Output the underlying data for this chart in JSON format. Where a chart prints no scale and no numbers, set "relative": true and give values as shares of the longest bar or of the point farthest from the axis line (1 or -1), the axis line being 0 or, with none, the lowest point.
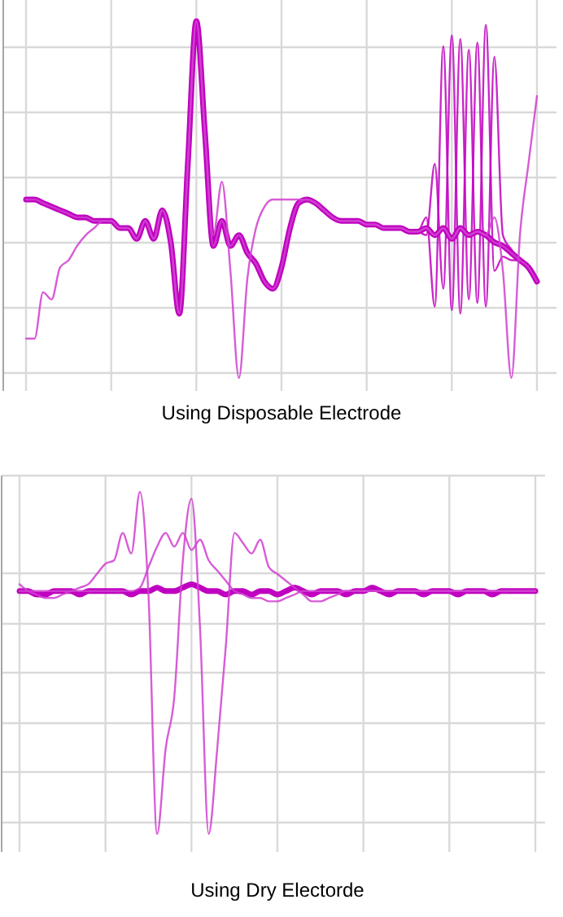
{
  "chart_data": [
    {
      "type": "line",
      "xlabel": "Using Disposable Electrode",
      "relative": true,
      "grid": true,
      "categories": [
        null,
        null,
        null,
        null,
        null,
        null,
        null,
        null,
        null,
        null,
        null,
        null,
        null,
        null,
        null,
        null,
        null,
        null,
        null,
        null,
        null,
        null,
        null,
        null,
        null,
        null,
        null,
        null,
        null,
        null,
        null,
        null,
        null,
        null,
        null,
        null,
        null,
        null,
        null,
        null,
        null,
        null,
        null,
        null,
        null,
        null,
        null,
        null,
        null,
        null,
        null,
        null,
        null,
        null,
        null,
        null,
        null,
        null,
        null,
        null,
        null
      ],
      "series": [
        {
          "color": "#c000c0",
          "values": [
            0.5,
            0.5,
            0.49,
            0.48,
            0.47,
            0.46,
            0.45,
            0.45,
            0.44,
            0.44,
            0.44,
            0.42,
            0.42,
            0.39,
            0.44,
            0.39,
            0.47,
            0.38,
            0.18,
            0.6,
            1,
            0.69,
            0.37,
            0.44,
            0.37,
            0.4,
            0.35,
            0.32,
            0.27,
            0.25,
            0.31,
            0.42,
            0.49,
            0.5,
            0.49,
            0.47,
            0.45,
            0.44,
            0.44,
            0.44,
            0.43,
            0.43,
            0.42,
            0.42,
            0.42,
            0.41,
            0.41,
            0.42,
            0.4,
            0.42,
            0.39,
            0.42,
            0.4,
            0.41,
            0.4,
            0.38,
            0.37,
            0.35,
            0.33,
            0.31,
            0.27
          ]
        },
        {
          "color": "#c000c0",
          "values": [
            0.5,
            0.5,
            0.49,
            0.48,
            0.47,
            0.46,
            0.45,
            0.45,
            0.44,
            0.44,
            0.44,
            0.42,
            0.42,
            0.39,
            0.44,
            0.39,
            0.47,
            0.38,
            0.18,
            0.6,
            1,
            0.69,
            0.37,
            0.44,
            0.37,
            0.4,
            0.35,
            0.32,
            0.27,
            0.25,
            0.31,
            0.42,
            0.49,
            0.5,
            0.49,
            0.47,
            0.45,
            0.44,
            0.44,
            0.44,
            0.43,
            0.43,
            0.42,
            0.42,
            0.42,
            0.41,
            0.41,
            0.45,
            0.2,
            0.93,
            0.19,
            0.95,
            0.22,
            0.94,
            0.2,
            0.9,
            0.4,
            0.36,
            0.33,
            0.31,
            0.27
          ]
        },
        {
          "color": "#c000c0",
          "values": [
            0.5,
            0.5,
            0.49,
            0.48,
            0.47,
            0.46,
            0.45,
            0.45,
            0.44,
            0.44,
            0.44,
            0.42,
            0.42,
            0.39,
            0.44,
            0.39,
            0.47,
            0.38,
            0.18,
            0.6,
            1,
            0.69,
            0.37,
            0.44,
            0.37,
            0.4,
            0.35,
            0.32,
            0.27,
            0.25,
            0.31,
            0.42,
            0.49,
            0.5,
            0.49,
            0.47,
            0.45,
            0.44,
            0.44,
            0.44,
            0.43,
            0.43,
            0.42,
            0.42,
            0.42,
            0.41,
            0.41,
            0.4,
            0.6,
            0.25,
            0.96,
            0.18,
            0.92,
            0.21,
            0.99,
            0.3,
            0.34,
            0.33,
            0.33,
            0.31,
            0.27
          ]
        },
        {
          "color": "#d040d0",
          "values": [
            0.11,
            0.11,
            0.24,
            0.22,
            0.31,
            0.33,
            0.37,
            0.4,
            0.42,
            0.44,
            0.44,
            0.42,
            0.42,
            0.39,
            0.44,
            0.39,
            0.47,
            0.38,
            0.18,
            0.6,
            1,
            0.69,
            0.4,
            0.55,
            0.3,
            0,
            0.28,
            0.42,
            0.48,
            0.5,
            0.5,
            0.5,
            0.5,
            0.5,
            0.49,
            0.47,
            0.45,
            0.44,
            0.44,
            0.44,
            0.43,
            0.43,
            0.42,
            0.42,
            0.42,
            0.41,
            0.41,
            0.42,
            0.4,
            0.42,
            0.39,
            0.42,
            0.4,
            0.41,
            0.4,
            0.38,
            0.37,
            0.35,
            0.33,
            0.31,
            0.27
          ]
        },
        {
          "color": "#d040d0",
          "values": [
            0.5,
            0.5,
            0.49,
            0.48,
            0.47,
            0.46,
            0.45,
            0.45,
            0.44,
            0.44,
            0.44,
            0.42,
            0.42,
            0.39,
            0.44,
            0.39,
            0.47,
            0.38,
            0.18,
            0.6,
            1,
            0.69,
            0.37,
            0.44,
            0.37,
            0.4,
            0.35,
            0.32,
            0.27,
            0.25,
            0.31,
            0.42,
            0.49,
            0.5,
            0.49,
            0.47,
            0.45,
            0.44,
            0.44,
            0.44,
            0.43,
            0.43,
            0.42,
            0.42,
            0.42,
            0.41,
            0.41,
            0.42,
            0.4,
            0.42,
            0.39,
            0.42,
            0.4,
            0.41,
            0.4,
            0.45,
            0.3,
            0,
            0.4,
            0.6,
            0.79
          ]
        }
      ]
    },
    {
      "type": "line",
      "xlabel": "Using Dry Electorde",
      "relative": true,
      "grid": true,
      "categories": [
        null,
        null,
        null,
        null,
        null,
        null,
        null,
        null,
        null,
        null,
        null,
        null,
        null,
        null,
        null,
        null,
        null,
        null,
        null,
        null,
        null,
        null,
        null,
        null,
        null,
        null,
        null,
        null,
        null,
        null,
        null,
        null,
        null,
        null,
        null,
        null,
        null,
        null,
        null,
        null,
        null,
        null,
        null,
        null,
        null,
        null,
        null,
        null,
        null,
        null,
        null,
        null,
        null,
        null,
        null,
        null,
        null,
        null,
        null,
        null,
        null
      ],
      "series": [
        {
          "color": "#c000c0",
          "values": [
            0.71,
            0.71,
            0.7,
            0.7,
            0.71,
            0.71,
            0.71,
            0.7,
            0.71,
            0.71,
            0.71,
            0.71,
            0.71,
            0.7,
            0.71,
            0.71,
            0.72,
            0.71,
            0.71,
            0.72,
            0.73,
            0.72,
            0.71,
            0.71,
            0.7,
            0.71,
            0.71,
            0.7,
            0.71,
            0.71,
            0.7,
            0.71,
            0.72,
            0.71,
            0.7,
            0.71,
            0.71,
            0.71,
            0.7,
            0.71,
            0.71,
            0.72,
            0.71,
            0.7,
            0.71,
            0.71,
            0.71,
            0.7,
            0.71,
            0.71,
            0.71,
            0.7,
            0.71,
            0.71,
            0.71,
            0.7,
            0.71,
            0.71,
            0.71,
            0.71,
            0.71
          ]
        },
        {
          "color": "#d040d0",
          "values": [
            0.73,
            0.71,
            0.7,
            0.69,
            0.69,
            0.7,
            0.71,
            0.72,
            0.73,
            0.76,
            0.79,
            0.8,
            0.88,
            0.82,
            1,
            0.7,
            0,
            0.25,
            0.4,
            0.8,
            0.98,
            0.6,
            0,
            0.25,
            0.55,
            0.88,
            0.85,
            0.82,
            0.86,
            0.78,
            0.76,
            0.74,
            0.72,
            0.7,
            0.68,
            0.68,
            0.69,
            0.7,
            0.71,
            0.71,
            0.71,
            0.71,
            0.71,
            0.71,
            0.71,
            0.71,
            0.71,
            0.71,
            0.71,
            0.71,
            0.71,
            0.71,
            0.71,
            0.71,
            0.71,
            0.71,
            0.71,
            0.71,
            0.71,
            0.71,
            0.71
          ]
        },
        {
          "color": "#d040d0",
          "values": [
            0.71,
            0.71,
            0.71,
            0.71,
            0.71,
            0.71,
            0.71,
            0.71,
            0.71,
            0.71,
            0.71,
            0.71,
            0.71,
            0.71,
            0.72,
            0.78,
            0.84,
            0.88,
            0.84,
            0.88,
            0.83,
            0.86,
            0.8,
            0.77,
            0.74,
            0.71,
            0.7,
            0.69,
            0.69,
            0.68,
            0.68,
            0.69,
            0.7,
            0.71,
            0.71,
            0.71,
            0.71,
            0.71,
            0.71,
            0.71,
            0.71,
            0.71,
            0.71,
            0.71,
            0.71,
            0.71,
            0.71,
            0.71,
            0.71,
            0.71,
            0.71,
            0.71,
            0.71,
            0.71,
            0.71,
            0.71,
            0.71,
            0.71,
            0.71,
            0.71,
            0.71
          ]
        }
      ]
    }
  ]
}
